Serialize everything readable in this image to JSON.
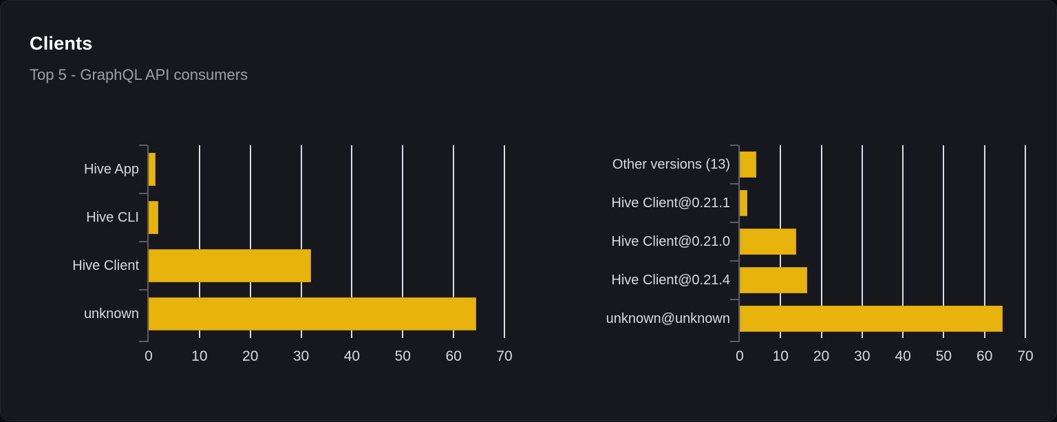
{
  "panel": {
    "title": "Clients",
    "subtitle": "Top 5 - GraphQL API consumers"
  },
  "colors": {
    "page_bg": "#0b0c0e",
    "panel_bg": "#16181d",
    "bar": "#e8b30d",
    "grid": "#dcdde6",
    "axis": "#5c5e66",
    "label": "#d9dadd",
    "title": "#ffffff",
    "subtitle": "#9da0a5"
  },
  "chart_data": [
    {
      "type": "bar",
      "orientation": "horizontal",
      "name": "clients-by-name",
      "categories": [
        "Hive App",
        "Hive CLI",
        "Hive Client",
        "unknown"
      ],
      "values": [
        1.3,
        1.9,
        32,
        64.4
      ],
      "xlim": [
        0,
        70
      ],
      "xticks": [
        0,
        10,
        20,
        30,
        40,
        50,
        60,
        70
      ],
      "grid": true,
      "legend": "none",
      "bar_color": "#e8b30d"
    },
    {
      "type": "bar",
      "orientation": "horizontal",
      "name": "clients-by-version",
      "categories": [
        "Other versions (13)",
        "Hive Client@0.21.1",
        "Hive Client@0.21.0",
        "Hive Client@0.21.4",
        "unknown@unknown"
      ],
      "values": [
        4,
        1.9,
        13.8,
        16.5,
        64.4
      ],
      "xlim": [
        0,
        70
      ],
      "xticks": [
        0,
        10,
        20,
        30,
        40,
        50,
        60,
        70
      ],
      "grid": true,
      "legend": "none",
      "bar_color": "#e8b30d"
    }
  ]
}
